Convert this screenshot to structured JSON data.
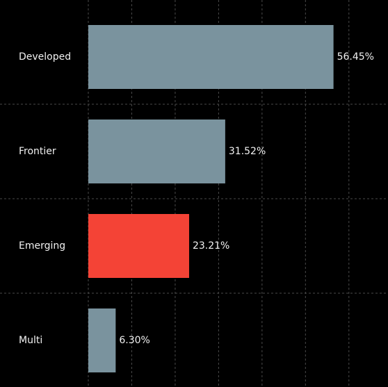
{
  "chart_data": {
    "type": "barh",
    "categories": [
      "Developed",
      "Frontier",
      "Emerging",
      "Multi"
    ],
    "values": [
      56.45,
      31.52,
      23.21,
      6.3
    ],
    "value_labels": [
      "56.45%",
      "31.52%",
      "23.21%",
      "6.30%"
    ],
    "colors": [
      "#7a939e",
      "#7a939e",
      "#f44336",
      "#7a939e"
    ],
    "xlim": [
      0,
      69
    ],
    "xticks": [
      0,
      10,
      20,
      30,
      40,
      50,
      60
    ],
    "grid": true
  }
}
